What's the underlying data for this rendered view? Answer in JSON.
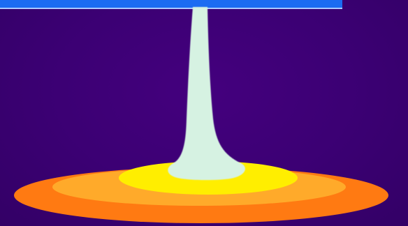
{
  "colors": {
    "background": "#3b0073",
    "top_bar": "#1b6cf2",
    "top_bar_edge": "#a8c8ff",
    "outer_ring": "#ff7a12",
    "middle_ring": "#ffaa2a",
    "inner_ring": "#ffee00",
    "spike": "#d6f2e2"
  }
}
